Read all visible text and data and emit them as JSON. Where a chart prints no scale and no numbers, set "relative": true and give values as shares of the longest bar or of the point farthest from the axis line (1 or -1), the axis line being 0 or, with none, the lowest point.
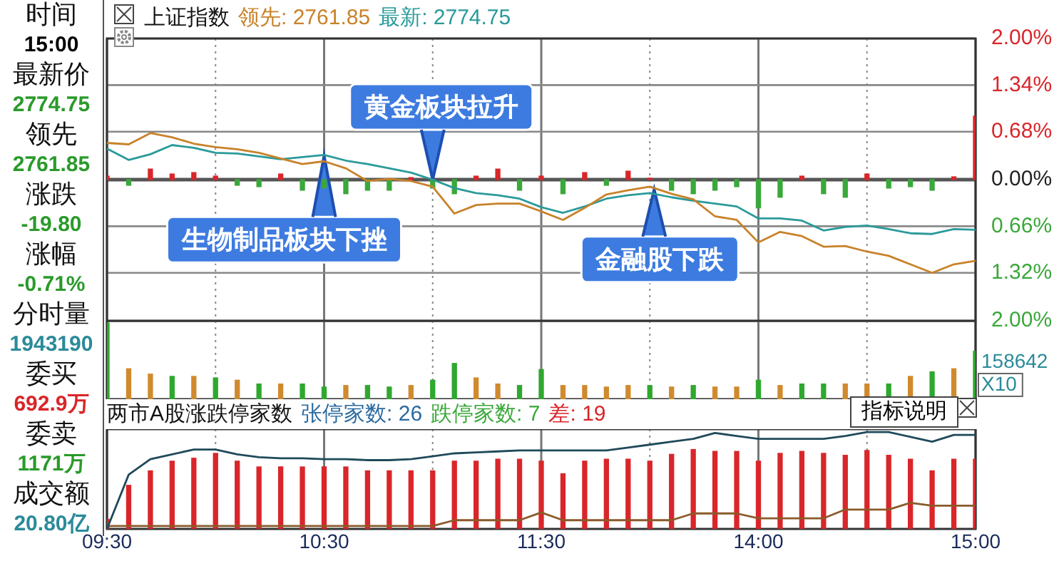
{
  "chart_data": [
    {
      "type": "other",
      "annotations": [
        "时间",
        "15:00",
        "最新价",
        "2774.75",
        "领先",
        "2761.85",
        "涨跌",
        "-19.80",
        "涨幅",
        "-0.71%",
        "分时量",
        "1943190",
        "委买",
        "692.9万",
        "委卖",
        "1171万",
        "成交额",
        "20.80亿"
      ]
    },
    {
      "type": "line",
      "title": "上证指数",
      "legend": "top left",
      "grid": true,
      "tick_labels": "y",
      "categories": [
        "09:30",
        null,
        null,
        null,
        null,
        null,
        null,
        null,
        null,
        null,
        "10:30",
        null,
        null,
        null,
        null,
        null,
        null,
        null,
        null,
        null,
        "11:30",
        null,
        null,
        null,
        null,
        null,
        null,
        null,
        null,
        null,
        "14:00",
        null,
        null,
        null,
        null,
        null,
        null,
        null,
        null,
        null,
        "15:00"
      ],
      "ylim": [
        -2,
        2
      ],
      "yticks": [
        {
          "value": 2,
          "label": "2.00%"
        },
        {
          "value": 1.34,
          "label": "1.34%"
        },
        {
          "value": 0.68,
          "label": "0.68%"
        },
        {
          "value": 0,
          "label": "0.00%"
        },
        {
          "value": -0.66,
          "label": "0.66%"
        },
        {
          "value": -1.32,
          "label": "1.32%"
        },
        {
          "value": -2,
          "label": "2.00%"
        }
      ],
      "series": [
        {
          "type": "bar",
          "values": [
            0.05,
            -0.08,
            0.15,
            0.08,
            0.1,
            0.05,
            -0.08,
            -0.1,
            0.08,
            -0.15,
            -0.12,
            -0.2,
            -0.15,
            -0.15,
            0.03,
            -0.12,
            -0.2,
            0.05,
            0.15,
            -0.15,
            0.05,
            -0.2,
            0.1,
            -0.08,
            0.12,
            0.02,
            -0.15,
            -0.2,
            -0.15,
            -0.1,
            -0.4,
            -0.25,
            0.05,
            -0.2,
            -0.25,
            0.08,
            -0.12,
            -0.1,
            -0.15,
            0.04,
            0.9
          ],
          "colors": [
            "#d9262a",
            "#3aa83a",
            "#d9262a",
            "#d9262a",
            "#d9262a",
            "#d9262a",
            "#3aa83a",
            "#3aa83a",
            "#d9262a",
            "#3aa83a",
            "#3aa83a",
            "#3aa83a",
            "#3aa83a",
            "#3aa83a",
            "#d9262a",
            "#3aa83a",
            "#3aa83a",
            "#d9262a",
            "#d9262a",
            "#3aa83a",
            "#d9262a",
            "#3aa83a",
            "#d9262a",
            "#3aa83a",
            "#d9262a",
            "#d9262a",
            "#3aa83a",
            "#3aa83a",
            "#3aa83a",
            "#3aa83a",
            "#3aa83a",
            "#3aa83a",
            "#d9262a",
            "#3aa83a",
            "#3aa83a",
            "#d9262a",
            "#3aa83a",
            "#3aa83a",
            "#3aa83a",
            "#d9262a",
            "#d9262a"
          ]
        },
        {
          "name": "领先: 2761.85",
          "color": "#c8822a",
          "values": [
            0.52,
            0.5,
            0.66,
            0.6,
            0.51,
            0.46,
            0.43,
            0.38,
            0.3,
            0.22,
            0.26,
            0.16,
            -0.02,
            0.01,
            -0.02,
            -0.1,
            -0.48,
            -0.36,
            -0.34,
            -0.34,
            -0.45,
            -0.57,
            -0.4,
            -0.21,
            -0.15,
            -0.1,
            -0.2,
            -0.28,
            -0.52,
            -0.57,
            -0.89,
            -0.74,
            -0.8,
            -0.95,
            -0.94,
            -1.02,
            -1.08,
            -1.2,
            -1.32,
            -1.2,
            -1.15
          ]
        },
        {
          "name": "最新: 2774.75",
          "color": "#2a9a9a",
          "values": [
            0.44,
            0.28,
            0.36,
            0.49,
            0.45,
            0.38,
            0.37,
            0.33,
            0.29,
            0.32,
            0.35,
            0.27,
            0.22,
            0.16,
            0.1,
            0,
            -0.12,
            -0.19,
            -0.22,
            -0.27,
            -0.39,
            -0.47,
            -0.38,
            -0.27,
            -0.22,
            -0.19,
            -0.25,
            -0.3,
            -0.34,
            -0.38,
            -0.55,
            -0.55,
            -0.58,
            -0.72,
            -0.67,
            -0.65,
            -0.7,
            -0.76,
            -0.77,
            -0.7,
            -0.71
          ]
        }
      ],
      "annotations": [
        {
          "text": "生物制品板块下挫",
          "x": "10:30",
          "y": 0.34
        },
        {
          "text": "黄金板块拉升",
          "y": 0
        },
        {
          "text": "金融股下跌",
          "y": -0.14
        }
      ]
    },
    {
      "type": "bar",
      "relative": true,
      "grid": "x",
      "tick_labels": false,
      "categories": [
        "09:30",
        null,
        null,
        null,
        null,
        null,
        null,
        null,
        null,
        null,
        "10:30",
        null,
        null,
        null,
        null,
        null,
        null,
        null,
        null,
        null,
        "11:30",
        null,
        null,
        null,
        null,
        null,
        null,
        null,
        null,
        null,
        "14:00",
        null,
        null,
        null,
        null,
        null,
        null,
        null,
        null,
        null,
        "15:00"
      ],
      "values": [
        1,
        0.4,
        0.33,
        0.3,
        0.3,
        0.28,
        0.25,
        0.2,
        0.2,
        0.2,
        0.16,
        0.18,
        0.18,
        0.16,
        0.18,
        0.25,
        0.47,
        0.28,
        0.2,
        0.18,
        0.39,
        0.18,
        0.18,
        0.16,
        0.18,
        0.18,
        0.16,
        0.18,
        0.16,
        0.16,
        0.25,
        0.18,
        0.2,
        0.2,
        0.2,
        0.2,
        0.2,
        0.3,
        0.36,
        0.4,
        0.63
      ],
      "colors": [
        "#2ea82e",
        "#d08a2e",
        "#d08a2e",
        "#2ea82e",
        "#d08a2e",
        "#2ea82e",
        "#d08a2e",
        "#2ea82e",
        "#d08a2e",
        "#2ea82e",
        "#2ea82e",
        "#d08a2e",
        "#2ea82e",
        "#2ea82e",
        "#d08a2e",
        "#2ea82e",
        "#2ea82e",
        "#d08a2e",
        "#d08a2e",
        "#2ea82e",
        "#2ea82e",
        "#d08a2e",
        "#d08a2e",
        "#d08a2e",
        "#d08a2e",
        "#2ea82e",
        "#d08a2e",
        "#2ea82e",
        "#d08a2e",
        "#d08a2e",
        "#2ea82e",
        "#d08a2e",
        "#2ea82e",
        "#2ea82e",
        "#d08a2e",
        "#d08a2e",
        "#2ea82e",
        "#d08a2e",
        "#2ea82e",
        "#d08a2e",
        "#2ea82e"
      ],
      "annotations": [
        "158642",
        "X10"
      ]
    },
    {
      "type": "bar",
      "title": "两市A股涨跌停家数",
      "relative": true,
      "grid": "x",
      "tick_labels": "x",
      "categories": [
        "09:30",
        null,
        null,
        null,
        null,
        null,
        null,
        null,
        null,
        null,
        "10:30",
        null,
        null,
        null,
        null,
        null,
        null,
        null,
        null,
        null,
        "11:30",
        null,
        null,
        null,
        null,
        null,
        null,
        null,
        null,
        null,
        "14:00",
        null,
        null,
        null,
        null,
        null,
        null,
        null,
        null,
        null,
        "15:00"
      ],
      "series": [
        {
          "type": "bar",
          "color": "#d9262a",
          "values": [
            0.1,
            0.45,
            0.6,
            0.7,
            0.73,
            0.78,
            0.7,
            0.64,
            0.64,
            0.64,
            0.64,
            0.64,
            0.6,
            0.6,
            0.6,
            0.6,
            0.7,
            0.7,
            0.72,
            0.72,
            0.7,
            0.57,
            0.7,
            0.72,
            0.72,
            0.7,
            0.77,
            0.82,
            0.8,
            0.8,
            0.7,
            0.78,
            0.8,
            0.78,
            0.76,
            0.81,
            0.76,
            0.72,
            0.6,
            0.72,
            0.72
          ]
        },
        {
          "type": "line",
          "color": "#1f4a5a",
          "values": [
            0,
            0.56,
            0.72,
            0.77,
            0.82,
            0.82,
            0.77,
            0.74,
            0.73,
            0.73,
            0.72,
            0.72,
            0.71,
            0.71,
            0.72,
            0.75,
            0.78,
            0.79,
            0.8,
            0.81,
            0.81,
            0.81,
            0.81,
            0.81,
            0.84,
            0.87,
            0.9,
            0.93,
            0.99,
            0.96,
            0.93,
            0.93,
            0.93,
            0.93,
            0.96,
            1,
            1,
            0.95,
            0.9,
            0.97,
            0.97
          ]
        },
        {
          "type": "line",
          "color": "#8a5a2a",
          "values": [
            0.03,
            0.03,
            0.03,
            0.03,
            0.03,
            0.03,
            0.03,
            0.03,
            0.03,
            0.03,
            0.03,
            0.03,
            0.03,
            0.03,
            0.03,
            0.03,
            0.09,
            0.09,
            0.09,
            0.09,
            0.17,
            0.09,
            0.09,
            0.09,
            0.09,
            0.09,
            0.09,
            0.16,
            0.16,
            0.16,
            0.11,
            0.11,
            0.11,
            0.11,
            0.2,
            0.2,
            0.2,
            0.27,
            0.24,
            0.24,
            0.24
          ]
        }
      ],
      "annotations": [
        "张停家数: 26",
        "跌停家数: 7",
        "差: 19",
        "指标说明"
      ]
    }
  ]
}
